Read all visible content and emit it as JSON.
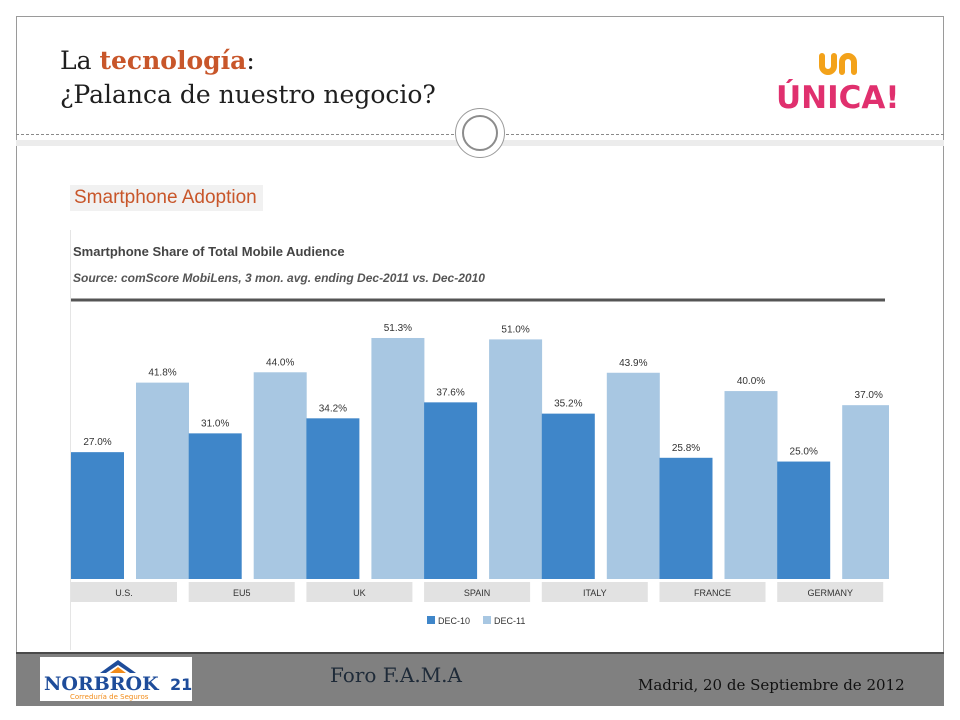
{
  "slide": {
    "title_prefix": "La ",
    "title_accent": "tecnología",
    "title_suffix": ":",
    "title_line2": "¿Palanca de nuestro negocio?",
    "section_heading": "Smartphone Adoption"
  },
  "logos": {
    "unica_text": "ÚNICA!",
    "norbrok_text": "NORBROK",
    "norbrok_number": "21",
    "norbrok_sub": "Correduría de Seguros"
  },
  "footer": {
    "center": "Foro F.A.M.A",
    "right": "Madrid, 20 de Septiembre de 2012"
  },
  "colors": {
    "accent": "#c8562a",
    "series1": "#3f86c9",
    "series2": "#a8c7e2"
  },
  "chart_data": {
    "type": "bar",
    "title": "Smartphone Share of Total Mobile Audience",
    "subtitle": "Source: comScore MobiLens, 3 mon. avg. ending Dec-2011 vs. Dec-2010",
    "categories": [
      "U.S.",
      "EU5",
      "UK",
      "SPAIN",
      "ITALY",
      "FRANCE",
      "GERMANY"
    ],
    "series": [
      {
        "name": "DEC-10",
        "values": [
          27.0,
          31.0,
          34.2,
          37.6,
          35.2,
          25.8,
          25.0
        ],
        "labels": [
          "27.0%",
          "31.0%",
          "34.2%",
          "37.6%",
          "35.2%",
          "25.8%",
          "25.0%"
        ]
      },
      {
        "name": "DEC-11",
        "values": [
          41.8,
          44.0,
          51.3,
          51.0,
          43.9,
          40.0,
          37.0
        ],
        "labels": [
          "41.8%",
          "44.0%",
          "51.3%",
          "51.0%",
          "43.9%",
          "40.0%",
          "37.0%"
        ]
      }
    ],
    "ylim": [
      0,
      53
    ],
    "grid": false,
    "legend": "bottom-center"
  }
}
